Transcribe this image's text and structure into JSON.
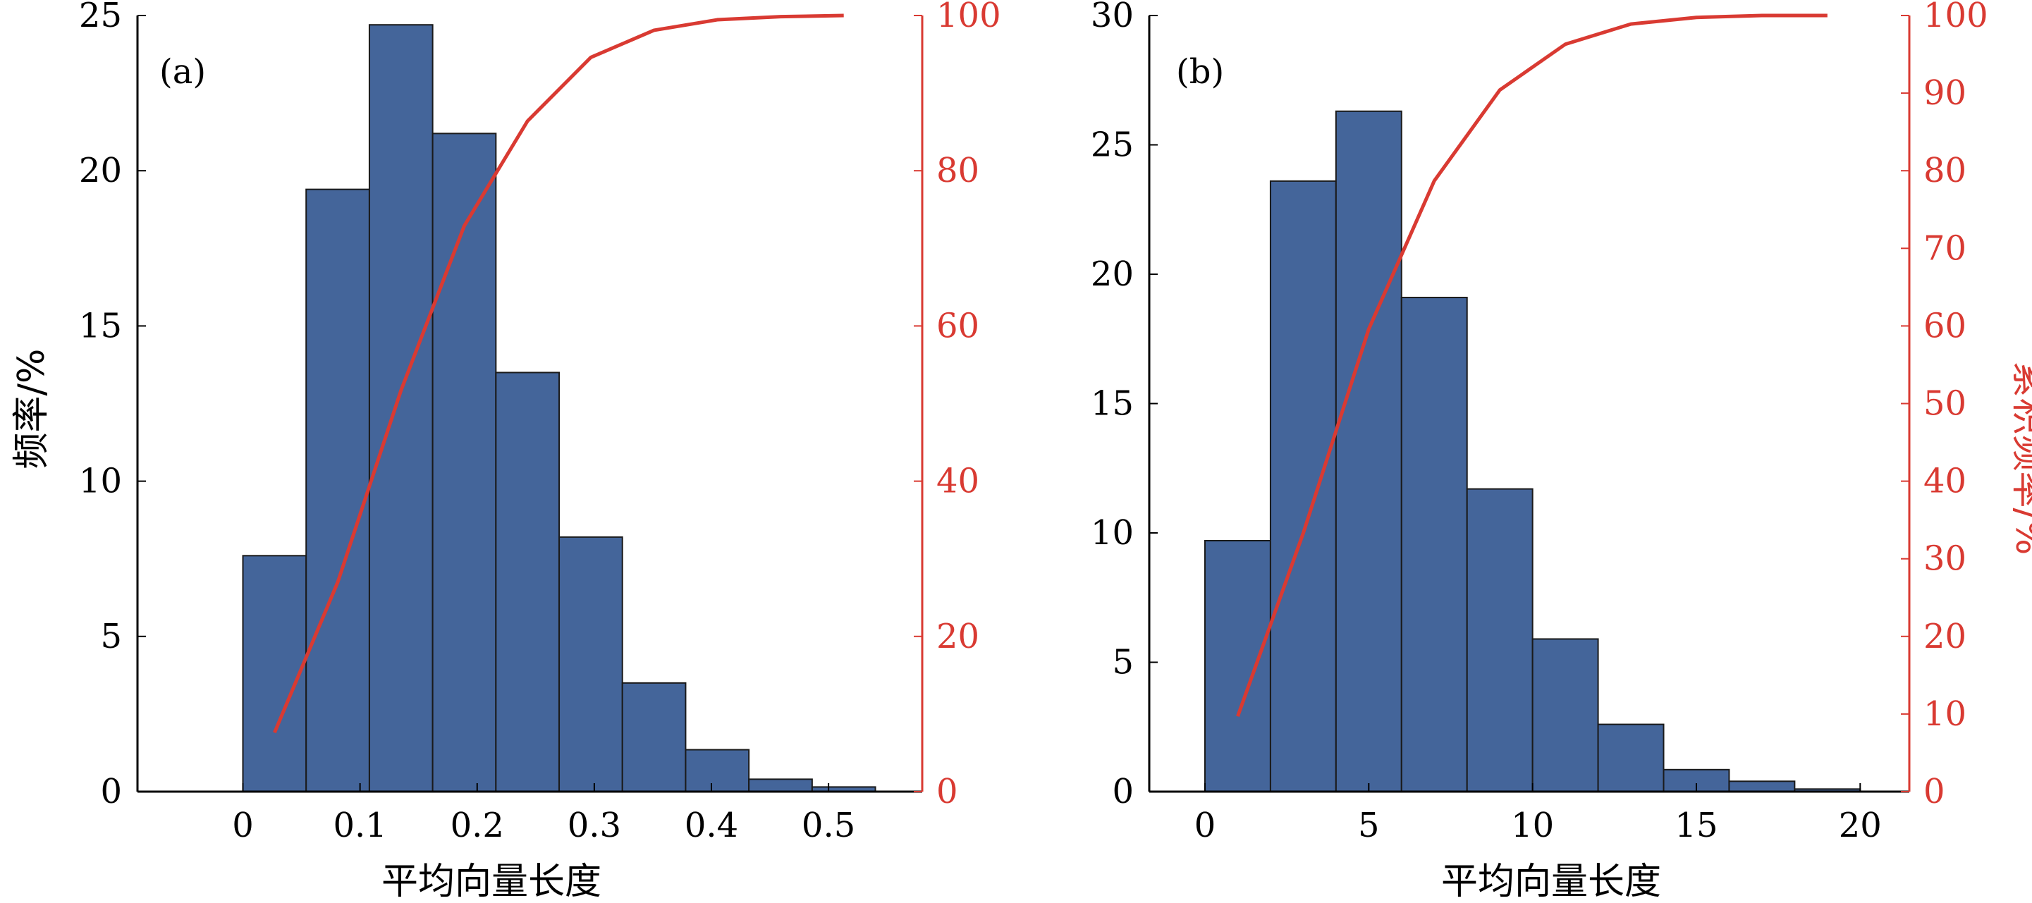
{
  "chart_data": [
    {
      "type": "bar",
      "panel_label": "(a)",
      "xlabel": "平均向量长度",
      "ylabel": "频率/%",
      "ylabel_right": "",
      "xlim": [
        -0.09,
        0.58
      ],
      "ylim": [
        0,
        25
      ],
      "ylim_right": [
        0,
        100
      ],
      "x_ticks": [
        "0",
        "0.1",
        "0.2",
        "0.3",
        "0.4",
        "0.5"
      ],
      "x_tick_values": [
        0,
        0.1,
        0.2,
        0.3,
        0.4,
        0.5
      ],
      "y_ticks": [
        "0",
        "5",
        "10",
        "15",
        "20",
        "25"
      ],
      "y_tick_values": [
        0,
        5,
        10,
        15,
        20,
        25
      ],
      "y_right_ticks": [
        "0",
        "20",
        "40",
        "60",
        "80",
        "100"
      ],
      "y_right_tick_values": [
        0,
        20,
        40,
        60,
        80,
        100
      ],
      "bar_color": "#44659a",
      "line_color": "#d93a32",
      "bins": [
        {
          "start": 0,
          "end": 0.054,
          "value": 7.6
        },
        {
          "start": 0.054,
          "end": 0.108,
          "value": 19.4
        },
        {
          "start": 0.108,
          "end": 0.162,
          "value": 24.7
        },
        {
          "start": 0.162,
          "end": 0.216,
          "value": 21.2
        },
        {
          "start": 0.216,
          "end": 0.27,
          "value": 13.5
        },
        {
          "start": 0.27,
          "end": 0.324,
          "value": 8.2
        },
        {
          "start": 0.324,
          "end": 0.378,
          "value": 3.5
        },
        {
          "start": 0.378,
          "end": 0.432,
          "value": 1.35
        },
        {
          "start": 0.432,
          "end": 0.486,
          "value": 0.4
        },
        {
          "start": 0.486,
          "end": 0.54,
          "value": 0.15
        }
      ],
      "cumulative": {
        "x": [
          0.027,
          0.081,
          0.135,
          0.189,
          0.243,
          0.297,
          0.351,
          0.405,
          0.459,
          0.513
        ],
        "values": [
          7.6,
          27.0,
          51.7,
          72.9,
          86.4,
          94.6,
          98.1,
          99.45,
          99.85,
          100
        ]
      }
    },
    {
      "type": "bar",
      "panel_label": "(b)",
      "xlabel": "平均向量长度",
      "ylabel": "",
      "ylabel_right": "累积频率/%",
      "xlim": [
        -1.7,
        21.5
      ],
      "ylim": [
        0,
        30
      ],
      "ylim_right": [
        0,
        100
      ],
      "x_ticks": [
        "0",
        "5",
        "10",
        "15",
        "20"
      ],
      "x_tick_values": [
        0,
        5,
        10,
        15,
        20
      ],
      "y_ticks": [
        "0",
        "5",
        "10",
        "15",
        "20",
        "25",
        "30"
      ],
      "y_tick_values": [
        0,
        5,
        10,
        15,
        20,
        25,
        30
      ],
      "y_right_ticks": [
        "0",
        "10",
        "20",
        "30",
        "40",
        "50",
        "60",
        "70",
        "80",
        "90",
        "100"
      ],
      "y_right_tick_values": [
        0,
        10,
        20,
        30,
        40,
        50,
        60,
        70,
        80,
        90,
        100
      ],
      "bar_color": "#44659a",
      "line_color": "#d93a32",
      "bins": [
        {
          "start": 0,
          "end": 2,
          "value": 9.7
        },
        {
          "start": 2,
          "end": 4,
          "value": 23.6
        },
        {
          "start": 4,
          "end": 6,
          "value": 26.3
        },
        {
          "start": 6,
          "end": 8,
          "value": 19.1
        },
        {
          "start": 8,
          "end": 10,
          "value": 11.7
        },
        {
          "start": 10,
          "end": 12,
          "value": 5.9
        },
        {
          "start": 12,
          "end": 14,
          "value": 2.6
        },
        {
          "start": 14,
          "end": 16,
          "value": 0.85
        },
        {
          "start": 16,
          "end": 18,
          "value": 0.4
        },
        {
          "start": 18,
          "end": 20,
          "value": 0.1
        }
      ],
      "cumulative": {
        "x": [
          1,
          3,
          5,
          7,
          9,
          11,
          13,
          15,
          17,
          19
        ],
        "values": [
          9.7,
          33.3,
          59.6,
          78.7,
          90.4,
          96.3,
          98.9,
          99.75,
          100,
          100
        ]
      }
    }
  ]
}
